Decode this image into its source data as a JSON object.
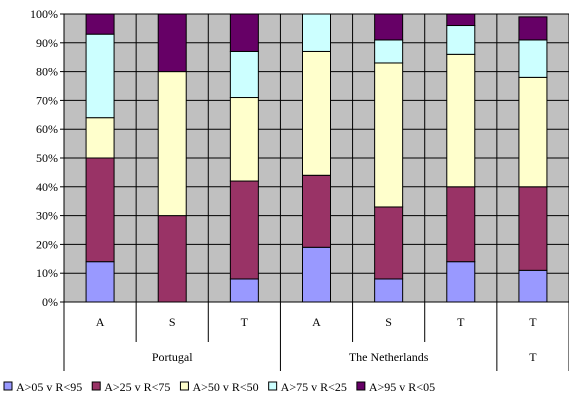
{
  "chart_data": {
    "type": "bar",
    "stacked": true,
    "title": "",
    "ylim": [
      0,
      100
    ],
    "yticks": [
      "0%",
      "10%",
      "20%",
      "30%",
      "40%",
      "50%",
      "60%",
      "70%",
      "80%",
      "90%",
      "100%"
    ],
    "categories": [
      "A",
      "S",
      "T",
      "A",
      "S",
      "T",
      "T"
    ],
    "groups": [
      {
        "label": "Portugal",
        "span": 3
      },
      {
        "label": "The Netherlands",
        "span": 3
      },
      {
        "label": "",
        "span": 1
      }
    ],
    "series": [
      {
        "name": "A>05 v R<95",
        "color": "#9999ff",
        "values": [
          14,
          0,
          8,
          19,
          8,
          14,
          11
        ]
      },
      {
        "name": "A>25 v R<75",
        "color": "#993366",
        "values": [
          36,
          30,
          34,
          25,
          25,
          26,
          29
        ]
      },
      {
        "name": "A>50 v R<50",
        "color": "#ffffcc",
        "values": [
          14,
          50,
          29,
          43,
          50,
          46,
          38
        ]
      },
      {
        "name": "A>75 v R<25",
        "color": "#ccffff",
        "values": [
          29,
          0,
          16,
          13,
          8,
          10,
          13
        ]
      },
      {
        "name": "A>95 v R<05",
        "color": "#660066",
        "values": [
          7,
          20,
          13,
          0,
          9,
          4,
          8
        ]
      }
    ],
    "plot_background": "#c0c0c0",
    "grid": true,
    "legend_position": "bottom"
  }
}
